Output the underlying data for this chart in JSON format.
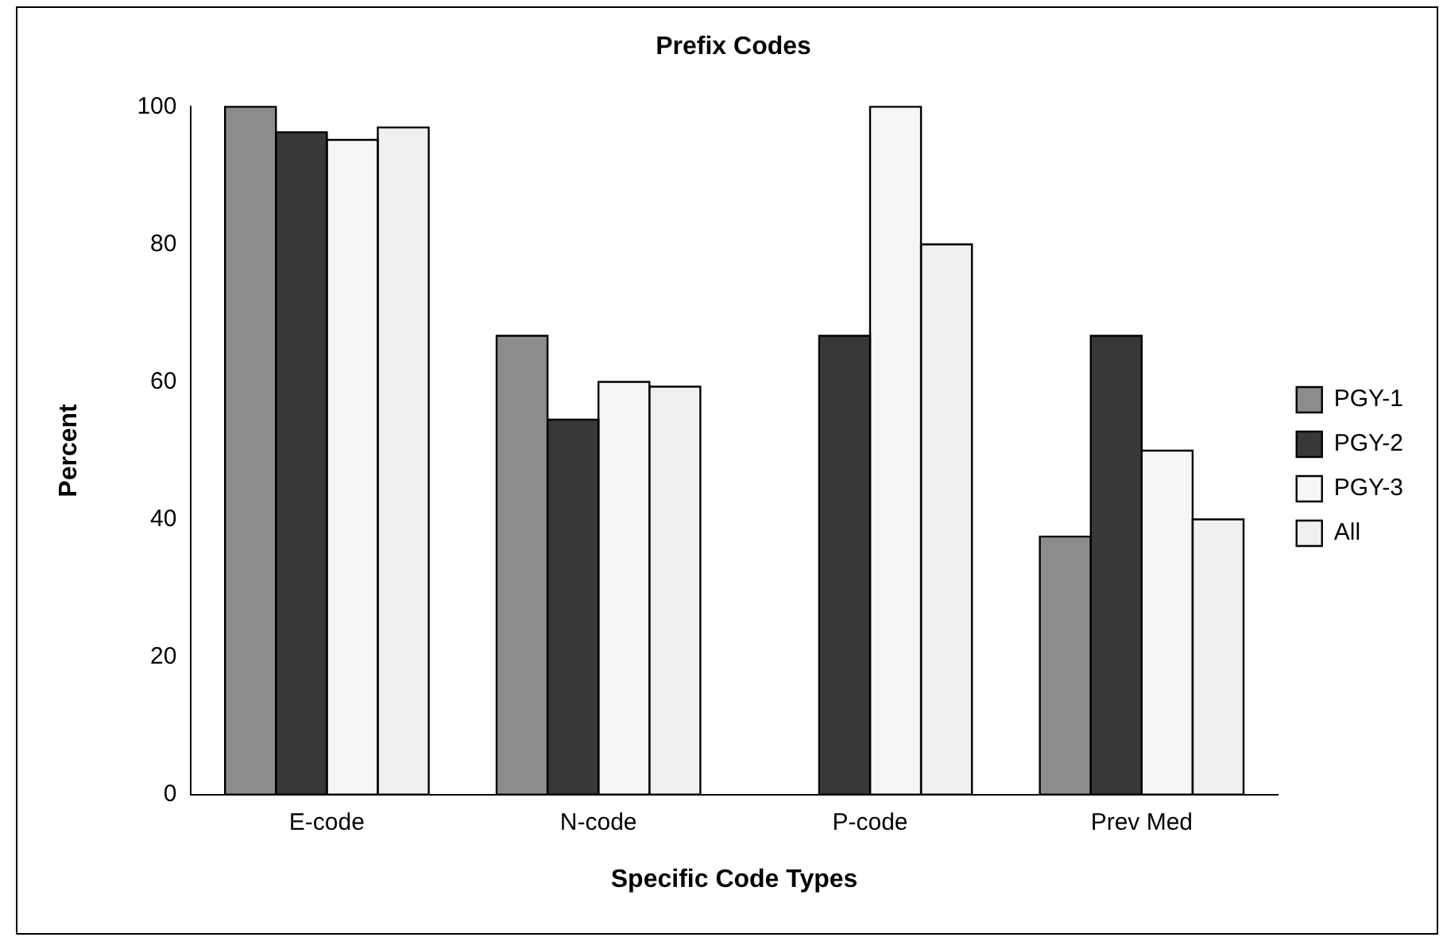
{
  "chart_data": {
    "type": "bar",
    "title": "Prefix Codes",
    "xlabel": "Specific Code Types",
    "ylabel": "Percent",
    "categories": [
      "E-code",
      "N-code",
      "P-code",
      "Prev Med"
    ],
    "series": [
      {
        "name": "PGY-1",
        "color": "#8c8c8c",
        "values": [
          100,
          66.7,
          0,
          37.5
        ]
      },
      {
        "name": "PGY-2",
        "color": "#383838",
        "values": [
          96.3,
          54.5,
          66.7,
          66.7
        ]
      },
      {
        "name": "PGY-3",
        "color": "#f6f6f6",
        "values": [
          95.2,
          60,
          100,
          50
        ]
      },
      {
        "name": "All",
        "color": "#f0f0f0",
        "values": [
          97,
          59.3,
          80,
          40
        ]
      }
    ],
    "ylim": [
      0,
      100
    ],
    "yticks": [
      0,
      20,
      40,
      60,
      80,
      100
    ],
    "grid": false,
    "legend": "right"
  }
}
